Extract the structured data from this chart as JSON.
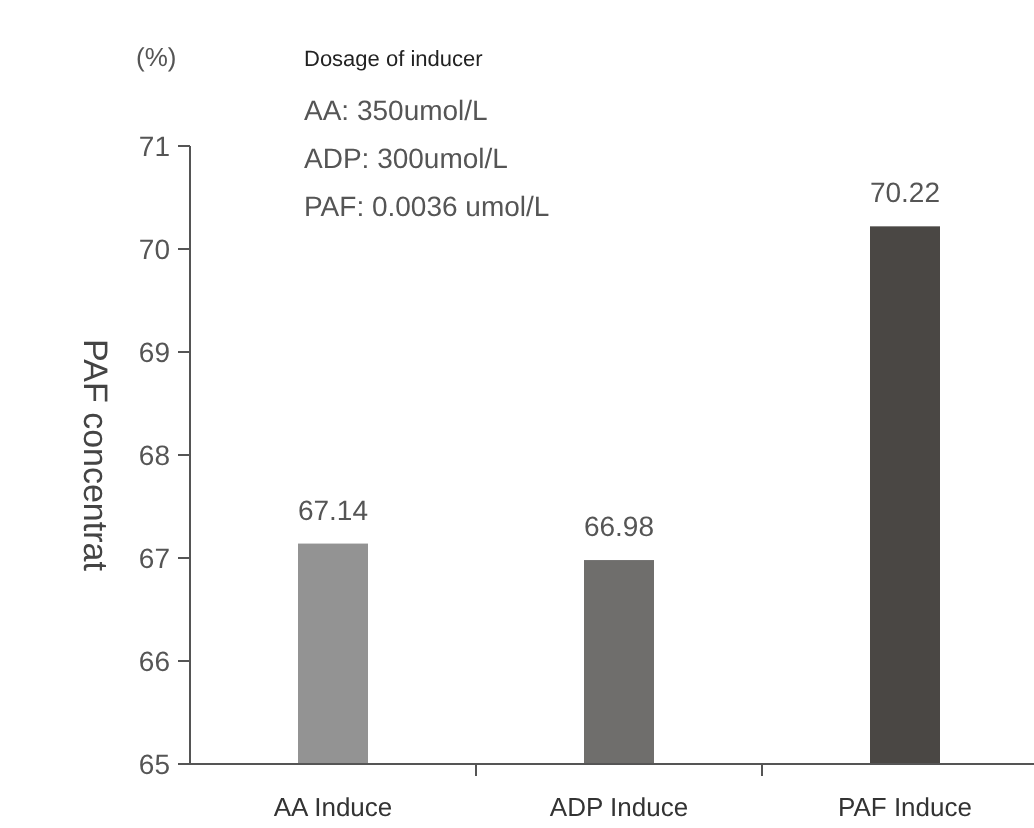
{
  "chart_data": {
    "type": "bar",
    "ylabel": "PAF concentrat",
    "annotations": [
      "(%)",
      "Dosage of inducer",
      "AA: 350umol/L",
      "ADP: 300umol/L",
      "PAF: 0.0036 umol/L"
    ],
    "categories": [
      "AA Induce",
      "ADP Induce",
      "PAF Induce"
    ],
    "values": [
      67.14,
      66.98,
      70.22
    ],
    "colors": [
      "#939393",
      "#6f6e6c",
      "#4a4744"
    ],
    "data_labels": true,
    "ylim": [
      65,
      71
    ],
    "yticks": [
      65,
      66,
      67,
      68,
      69,
      70,
      71
    ],
    "grid": false
  }
}
